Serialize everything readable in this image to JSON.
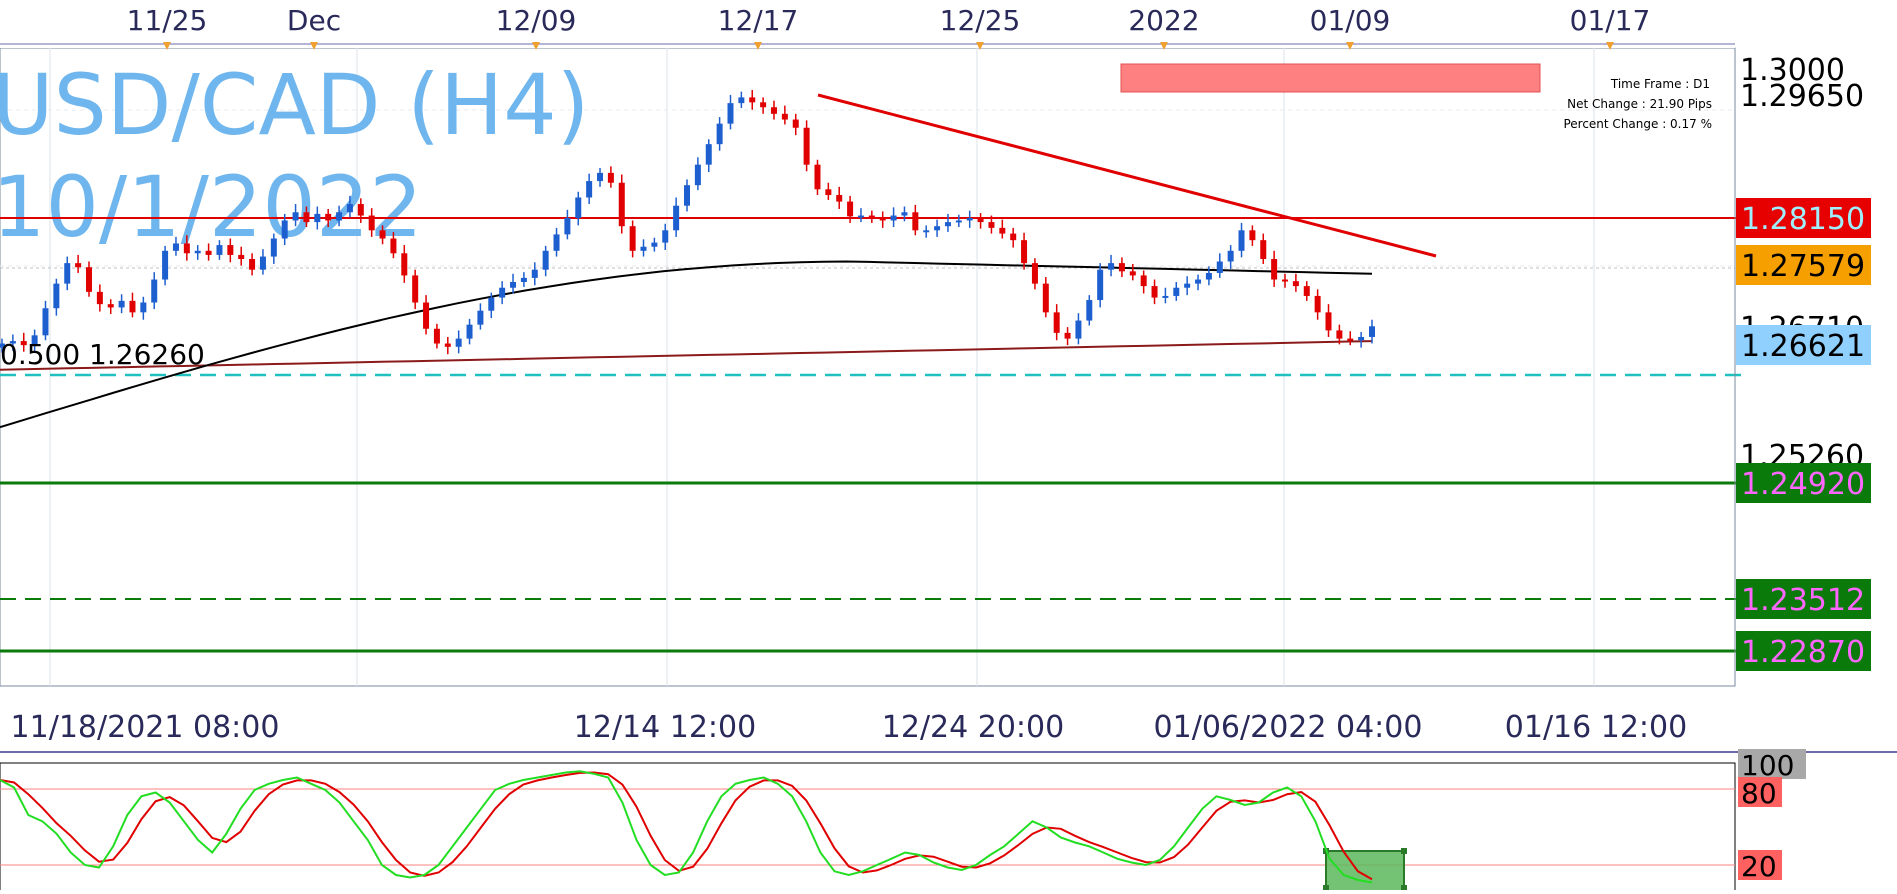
{
  "title": {
    "line1": "USD/CAD (H4)",
    "line2": "10/1/2022",
    "color": "#6fb6ee"
  },
  "info_box": {
    "time_frame": "Time Frame : D1",
    "net_change": "Net Change : 21.90 Pips",
    "percent_change": "Percent Change : 0.17 %"
  },
  "fib_label": "0.500 1.26260",
  "top_date_labels": [
    "11/25",
    "Dec",
    "12/09",
    "12/17",
    "12/25",
    "2022",
    "01/09",
    "01/17"
  ],
  "bottom_date_labels": [
    "11/18/2021 08:00",
    "12/14 12:00",
    "12/24 20:00",
    "01/06/2022 04:00",
    "01/16 12:00"
  ],
  "right_axis_labels": [
    "1.3000",
    "1.29650",
    "1.26710",
    "1.25260"
  ],
  "price_tags": [
    {
      "value": "1.28150",
      "bg": "#e60000",
      "fg": "#9ff0ff"
    },
    {
      "value": "1.27579",
      "bg": "#f5a000",
      "fg": "#000000"
    },
    {
      "value": "1.26621",
      "bg": "#8fd0ff",
      "fg": "#000000"
    },
    {
      "value": "1.24920",
      "bg": "#0a7a0a",
      "fg": "#ff66ff"
    },
    {
      "value": "1.23512",
      "bg": "#0a7a0a",
      "fg": "#ff66ff"
    },
    {
      "value": "1.22870",
      "bg": "#0a7a0a",
      "fg": "#ff66ff"
    }
  ],
  "stoch_levels": [
    {
      "value": "100",
      "bg": "#a8a8a8"
    },
    {
      "value": "80",
      "bg": "#ff6060"
    },
    {
      "value": "20",
      "bg": "#ff6060"
    }
  ],
  "chart_data": {
    "type": "line",
    "symbol": "USD/CAD",
    "timeframe": "H4",
    "y_range": [
      1.2287,
      1.3
    ],
    "horizontal_levels": [
      {
        "price": 1.2815,
        "color": "#e00000",
        "style": "solid"
      },
      {
        "price": 1.2662,
        "color": "#20c0c0",
        "style": "dashed"
      },
      {
        "price": 1.2492,
        "color": "#0a7a0a",
        "style": "solid"
      },
      {
        "price": 1.23512,
        "color": "#0a7a0a",
        "style": "dashed"
      },
      {
        "price": 1.2287,
        "color": "#0a7a0a",
        "style": "solid"
      }
    ],
    "trendline": {
      "color": "#e00000",
      "from_price": 1.2965,
      "to_price": 1.2775
    },
    "resistance_zone": {
      "from_price": 1.299,
      "to_price": 1.2968,
      "color": "#ff8080"
    },
    "close_series": [
      1.2662,
      1.2665,
      1.266,
      1.2672,
      1.2705,
      1.2735,
      1.276,
      1.2755,
      1.2725,
      1.271,
      1.2706,
      1.2714,
      1.27,
      1.2712,
      1.274,
      1.2775,
      1.2784,
      1.2772,
      1.2775,
      1.277,
      1.2782,
      1.277,
      1.2765,
      1.2752,
      1.2768,
      1.279,
      1.2812,
      1.2822,
      1.281,
      1.282,
      1.2812,
      1.2822,
      1.2832,
      1.2818,
      1.28,
      1.279,
      1.2772,
      1.2745,
      1.2712,
      1.268,
      1.2662,
      1.2658,
      1.2668,
      1.2685,
      1.2702,
      1.2718,
      1.273,
      1.2737,
      1.2742,
      1.2752,
      1.2775,
      1.2795,
      1.2815,
      1.284,
      1.286,
      1.287,
      1.2858,
      1.2805,
      1.2775,
      1.278,
      1.2785,
      1.28,
      1.283,
      1.2855,
      1.288,
      1.2905,
      1.293,
      1.2955,
      1.2962,
      1.2956,
      1.295,
      1.2942,
      1.2935,
      1.2925,
      1.288,
      1.285,
      1.2843,
      1.2835,
      1.2817,
      1.2818,
      1.2815,
      1.2812,
      1.2818,
      1.2822,
      1.28,
      1.28,
      1.2805,
      1.281,
      1.2812,
      1.2815,
      1.281,
      1.2803,
      1.2796,
      1.2788,
      1.276,
      1.2735,
      1.27,
      1.2675,
      1.2668,
      1.269,
      1.2715,
      1.2752,
      1.276,
      1.275,
      1.2745,
      1.2732,
      1.2718,
      1.272,
      1.273,
      1.2735,
      1.274,
      1.2748,
      1.2762,
      1.2775,
      1.28,
      1.2788,
      1.2765,
      1.274,
      1.2738,
      1.2732,
      1.272,
      1.27,
      1.2678,
      1.2668,
      1.2666,
      1.267,
      1.2683
    ],
    "ma_black": {
      "color": "#000000",
      "start": 1.256,
      "end": 1.2747
    },
    "ma_maroon": {
      "color": "#8b1a1a",
      "start": 1.263,
      "end": 1.2665
    },
    "stochastic": {
      "main_color": "#22dd22",
      "signal_color": "#e00000",
      "levels": [
        100,
        80,
        20
      ],
      "main": [
        88,
        82,
        60,
        55,
        45,
        30,
        20,
        18,
        35,
        60,
        75,
        78,
        70,
        55,
        40,
        30,
        45,
        65,
        80,
        85,
        88,
        90,
        85,
        80,
        70,
        55,
        40,
        20,
        12,
        10,
        12,
        20,
        35,
        50,
        65,
        80,
        85,
        88,
        90,
        92,
        94,
        95,
        93,
        90,
        70,
        40,
        20,
        12,
        14,
        30,
        55,
        75,
        85,
        88,
        90,
        85,
        75,
        55,
        30,
        15,
        12,
        15,
        20,
        25,
        30,
        28,
        22,
        18,
        16,
        20,
        28,
        35,
        45,
        55,
        50,
        42,
        38,
        35,
        30,
        25,
        22,
        20,
        24,
        35,
        50,
        65,
        75,
        72,
        68,
        70,
        78,
        82,
        75,
        55,
        25,
        12,
        8,
        6
      ]
    }
  }
}
